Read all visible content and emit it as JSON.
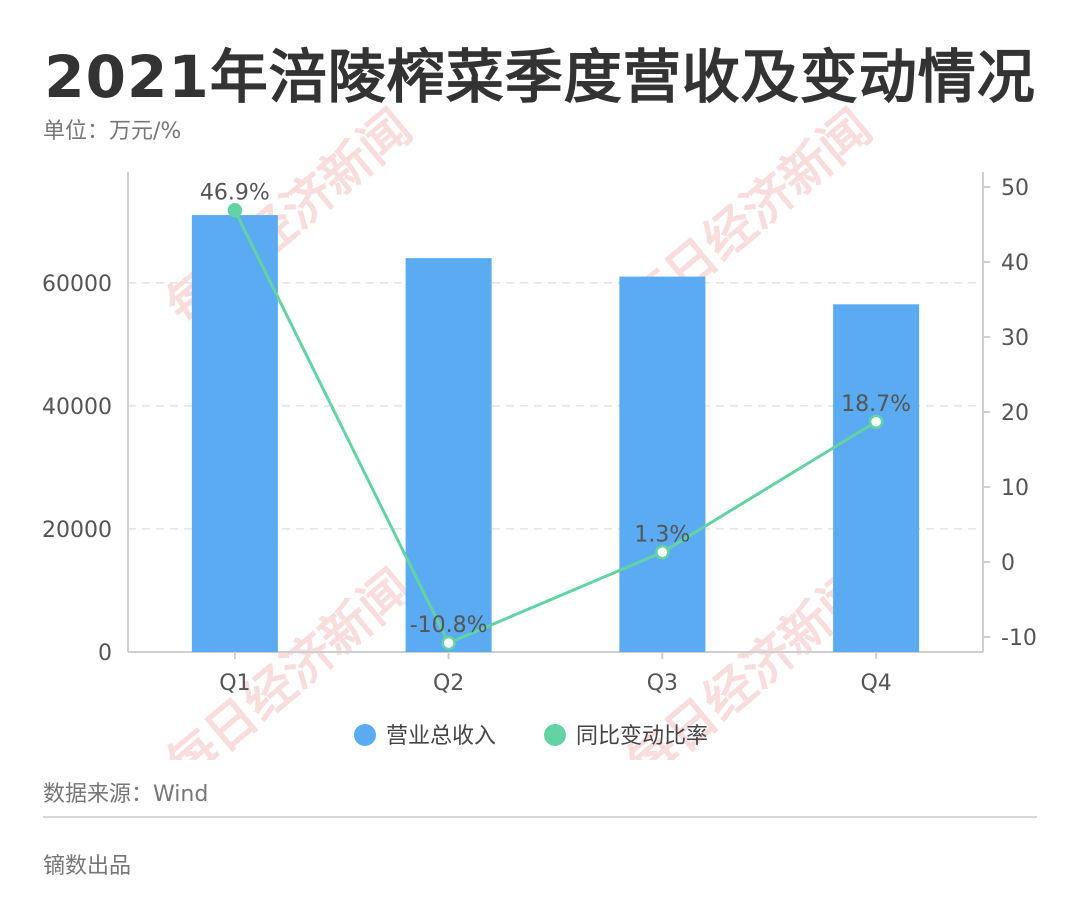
{
  "header": {
    "title": "2021年涪陵榨菜季度营收及变动情况",
    "unit": "单位：万元/%"
  },
  "footer": {
    "source": "数据来源：Wind",
    "credit": "镝数出品"
  },
  "watermark": "每日经济新闻",
  "colors": {
    "bar": "#5aabf2",
    "line": "#63d3a4",
    "grid": "#e3e3e3",
    "axis": "#cfcfcf"
  },
  "chart_data": {
    "type": "bar",
    "categories": [
      "Q1",
      "Q2",
      "Q3",
      "Q4"
    ],
    "series": [
      {
        "name": "营业总收入",
        "type": "bar",
        "axis": "left",
        "values": [
          71000,
          64000,
          61000,
          56500
        ]
      },
      {
        "name": "同比变动比率",
        "type": "line",
        "axis": "right",
        "values": [
          46.9,
          -10.8,
          1.3,
          18.7
        ],
        "labels": [
          "46.9%",
          "-10.8%",
          "1.3%",
          "18.7%"
        ]
      }
    ],
    "y_left": {
      "lim": [
        0,
        78000
      ],
      "ticks": [
        0,
        20000,
        40000,
        60000
      ],
      "tick_labels": [
        "0",
        "20000",
        "40000",
        "60000"
      ]
    },
    "y_right": {
      "lim": [
        -12,
        52
      ],
      "ticks": [
        -10,
        0,
        10,
        20,
        30,
        40,
        50
      ],
      "tick_labels": [
        "-10",
        "0",
        "10",
        "20",
        "30",
        "40",
        "50"
      ]
    },
    "grid": true,
    "legend_position": "bottom-center"
  }
}
